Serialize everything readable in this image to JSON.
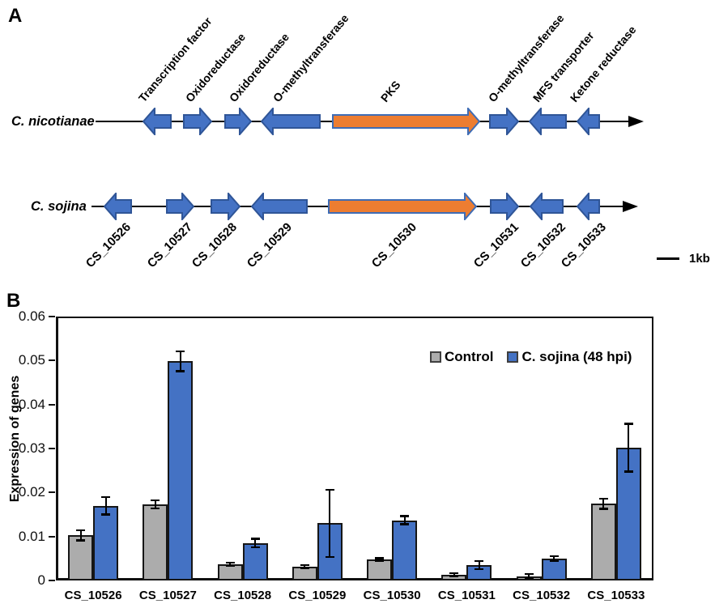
{
  "figure": {
    "panel_a_label": "A",
    "panel_b_label": "B"
  },
  "panel_a": {
    "scale_bar_label": "1kb",
    "colors": {
      "gene_blue": "#4472C4",
      "gene_blue_border": "#2F5597",
      "pks_orange": "#ED7D31",
      "pks_orange_border": "#3E6CB5"
    },
    "species_rows": [
      {
        "species": "C. nicotianae",
        "line": {
          "x1": 118,
          "x2": 795,
          "y": 150
        },
        "label_pos": {
          "x": 14,
          "y": 141
        },
        "genes": [
          {
            "function": "Transcription factor",
            "dir": "left",
            "color": "blue",
            "x": 176,
            "w": 36,
            "label_x": 180
          },
          {
            "function": "Oxidoreductase",
            "dir": "right",
            "color": "blue",
            "x": 226,
            "w": 36,
            "label_x": 238
          },
          {
            "function": "Oxidoreductase",
            "dir": "right",
            "color": "blue",
            "x": 277,
            "w": 34,
            "label_x": 292
          },
          {
            "function": "O-methyltransferase",
            "dir": "left",
            "color": "blue",
            "x": 322,
            "w": 74,
            "label_x": 346
          },
          {
            "function": "PKS",
            "dir": "right",
            "color": "orange",
            "x": 410,
            "w": 183,
            "label_x": 479
          },
          {
            "function": "O-methyltransferase",
            "dir": "right",
            "color": "blue",
            "x": 604,
            "w": 37,
            "label_x": 612
          },
          {
            "function": "MFS transporter",
            "dir": "left",
            "color": "blue",
            "x": 653,
            "w": 47,
            "label_x": 667
          },
          {
            "function": "Ketone reductase",
            "dir": "left",
            "color": "blue",
            "x": 712,
            "w": 29,
            "label_x": 713
          }
        ]
      },
      {
        "species": "C. sojina",
        "line": {
          "x1": 113,
          "x2": 788,
          "y": 255
        },
        "label_pos": {
          "x": 38,
          "y": 246
        },
        "genes": [
          {
            "gene_id": "CS_10526",
            "dir": "left",
            "color": "blue",
            "x": 128,
            "w": 35,
            "label_x": 153
          },
          {
            "gene_id": "CS_10527",
            "dir": "right",
            "color": "blue",
            "x": 205,
            "w": 35,
            "label_x": 229
          },
          {
            "gene_id": "CS_10528",
            "dir": "right",
            "color": "blue",
            "x": 260,
            "w": 37,
            "label_x": 284
          },
          {
            "gene_id": "CS_10529",
            "dir": "left",
            "color": "blue",
            "x": 310,
            "w": 70,
            "label_x": 352
          },
          {
            "gene_id": "CS_10530",
            "dir": "right",
            "color": "orange",
            "x": 405,
            "w": 184,
            "label_x": 506
          },
          {
            "gene_id": "CS_10531",
            "dir": "right",
            "color": "blue",
            "x": 605,
            "w": 36,
            "label_x": 632
          },
          {
            "gene_id": "CS_10532",
            "dir": "left",
            "color": "blue",
            "x": 654,
            "w": 42,
            "label_x": 690
          },
          {
            "gene_id": "CS_10533",
            "dir": "left",
            "color": "blue",
            "x": 712,
            "w": 29,
            "label_x": 740
          }
        ]
      }
    ]
  },
  "chart_data": {
    "type": "bar",
    "title": "",
    "xlabel": "",
    "ylabel": "Expression of genes",
    "ylim": [
      0,
      0.06
    ],
    "ytick_step": 0.01,
    "grid": false,
    "legend_position": "top-right-inside",
    "categories": [
      "CS_10526",
      "CS_10527",
      "CS_10528",
      "CS_10529",
      "CS_10530",
      "CS_10531",
      "CS_10532",
      "CS_10533"
    ],
    "series": [
      {
        "name": "Control",
        "color": "#ACACAC",
        "values": [
          0.0103,
          0.0173,
          0.0037,
          0.0031,
          0.0048,
          0.0013,
          0.001,
          0.0174
        ],
        "errors": [
          0.0012,
          0.001,
          0.0004,
          0.0004,
          0.0003,
          0.0004,
          0.0005,
          0.0012
        ]
      },
      {
        "name": "C. sojina (48 hpi)",
        "color": "#4472C4",
        "values": [
          0.017,
          0.0498,
          0.0085,
          0.013,
          0.0137,
          0.0035,
          0.005,
          0.0302
        ],
        "errors": [
          0.002,
          0.0023,
          0.001,
          0.0077,
          0.001,
          0.001,
          0.0006,
          0.0055
        ]
      }
    ]
  }
}
